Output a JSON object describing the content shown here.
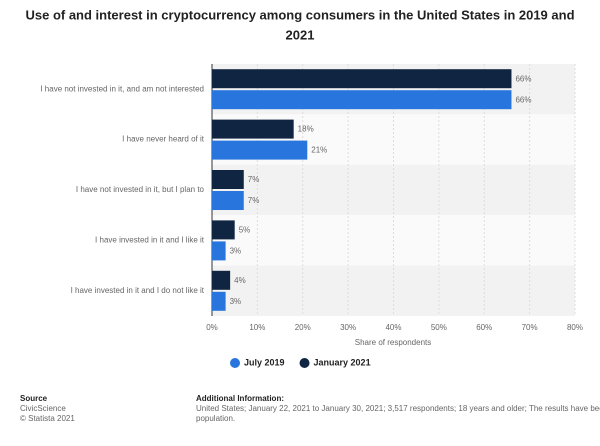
{
  "chart_data": {
    "type": "hbar",
    "title": "Use of and interest in cryptocurrency among consumers in the United States in 2019 and 2021",
    "categories": [
      "I have not invested in it, and am not interested",
      "I have never heard of it",
      "I have not invested in it, but I plan to",
      "I have invested in it and I like it",
      "I have invested in it and I do not like it"
    ],
    "series": [
      {
        "name": "July 2019",
        "color": "#2876dd",
        "values": [
          66,
          21,
          7,
          3,
          3
        ],
        "value_labels": [
          "66%",
          "21%",
          "7%",
          "3%",
          "3%"
        ]
      },
      {
        "name": "January 2021",
        "color": "#0f2542",
        "values": [
          66,
          18,
          7,
          5,
          4
        ],
        "value_labels": [
          "66%",
          "18%",
          "7%",
          "5%",
          "4%"
        ]
      }
    ],
    "x_label": "Share of respondents",
    "xlim": [
      0,
      80
    ],
    "xticks": [
      {
        "value": 0,
        "label": "0%"
      },
      {
        "value": 10,
        "label": "10%"
      },
      {
        "value": 20,
        "label": "20%"
      },
      {
        "value": 30,
        "label": "30%"
      },
      {
        "value": 40,
        "label": "40%"
      },
      {
        "value": 50,
        "label": "50%"
      },
      {
        "value": 60,
        "label": "60%"
      },
      {
        "value": 70,
        "label": "70%"
      },
      {
        "value": 80,
        "label": "80%"
      }
    ],
    "grid": true,
    "legend": "bottom"
  },
  "footer": {
    "source_title": "Source",
    "source": "CivicScience",
    "copyright": "© Statista 2021",
    "info_title": "Additional Information:",
    "info_lines": [
      "United States; January 22, 2021 to January 30, 2021; 3,517 respondents; 18 years and older; The results have been weig",
      "population."
    ]
  }
}
